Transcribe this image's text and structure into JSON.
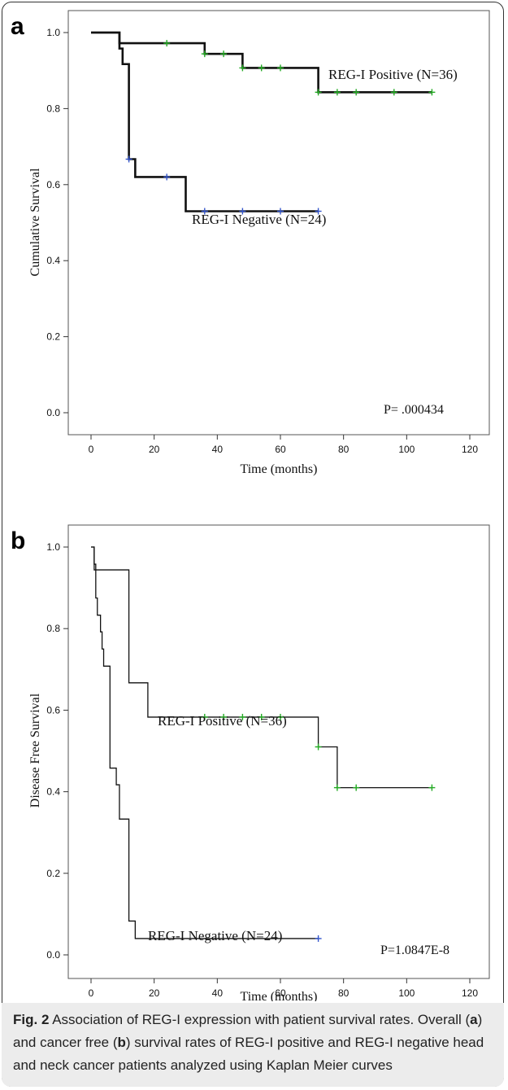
{
  "panels": [
    {
      "letter": "a",
      "chart_data": {
        "type": "line",
        "ylabel": "Cumulative Survival",
        "xlabel": "Time (months)",
        "xlim": [
          0,
          120
        ],
        "ylim": [
          0.0,
          1.0
        ],
        "xticks": [
          0,
          20,
          40,
          60,
          80,
          100,
          120
        ],
        "yticks": [
          "0.0",
          "0.2",
          "0.4",
          "0.6",
          "0.8",
          "1.0"
        ],
        "pvalue_text": "P= .000434",
        "line_weight": "bold",
        "series": [
          {
            "name": "REG-I Positive (N=36)",
            "steps": [
              [
                0,
                1.0
              ],
              [
                9,
                0.972
              ],
              [
                36,
                0.944
              ],
              [
                48,
                0.907
              ],
              [
                72,
                0.843
              ],
              [
                108,
                0.843
              ]
            ],
            "censored": [
              [
                24,
                0.972
              ],
              [
                36,
                0.944
              ],
              [
                42,
                0.944
              ],
              [
                48,
                0.907
              ],
              [
                54,
                0.907
              ],
              [
                60,
                0.907
              ],
              [
                72,
                0.843
              ],
              [
                78,
                0.843
              ],
              [
                84,
                0.843
              ],
              [
                96,
                0.843
              ],
              [
                108,
                0.843
              ]
            ],
            "color": "#22aa22"
          },
          {
            "name": "REG-I Negative (N=24)",
            "steps": [
              [
                0,
                1.0
              ],
              [
                9,
                0.958
              ],
              [
                10,
                0.917
              ],
              [
                12,
                0.667
              ],
              [
                14,
                0.62
              ],
              [
                30,
                0.53
              ],
              [
                72,
                0.53
              ]
            ],
            "censored": [
              [
                12,
                0.667
              ],
              [
                24,
                0.62
              ],
              [
                36,
                0.53
              ],
              [
                48,
                0.53
              ],
              [
                60,
                0.53
              ],
              [
                72,
                0.53
              ]
            ],
            "color": "#3355cc"
          }
        ]
      }
    },
    {
      "letter": "b",
      "chart_data": {
        "type": "line",
        "ylabel": "Disease Free Survival",
        "xlabel": "Time (months)",
        "xlim": [
          0,
          120
        ],
        "ylim": [
          0.0,
          1.0
        ],
        "xticks": [
          0,
          20,
          40,
          60,
          80,
          100,
          120
        ],
        "yticks": [
          "0.0",
          "0.2",
          "0.4",
          "0.6",
          "0.8",
          "1.0"
        ],
        "pvalue_text": "P=1.0847E-8",
        "line_weight": "thin",
        "series": [
          {
            "name": "REG-I Positive (N=36)",
            "steps": [
              [
                0,
                1.0
              ],
              [
                1,
                0.944
              ],
              [
                12,
                0.667
              ],
              [
                18,
                0.583
              ],
              [
                72,
                0.51
              ],
              [
                78,
                0.41
              ],
              [
                108,
                0.41
              ]
            ],
            "censored": [
              [
                36,
                0.583
              ],
              [
                42,
                0.583
              ],
              [
                48,
                0.583
              ],
              [
                54,
                0.583
              ],
              [
                60,
                0.583
              ],
              [
                72,
                0.51
              ],
              [
                78,
                0.41
              ],
              [
                84,
                0.41
              ],
              [
                108,
                0.41
              ]
            ],
            "color": "#22aa22"
          },
          {
            "name": "REG-I Negative (N=24)",
            "steps": [
              [
                0,
                1.0
              ],
              [
                1,
                0.958
              ],
              [
                1.5,
                0.875
              ],
              [
                2,
                0.833
              ],
              [
                3,
                0.792
              ],
              [
                3.5,
                0.75
              ],
              [
                4,
                0.708
              ],
              [
                6,
                0.458
              ],
              [
                8,
                0.417
              ],
              [
                9,
                0.333
              ],
              [
                12,
                0.083
              ],
              [
                14,
                0.04
              ],
              [
                72,
                0.04
              ]
            ],
            "censored": [
              [
                72,
                0.04
              ]
            ],
            "color": "#3355cc"
          }
        ]
      }
    }
  ],
  "caption": {
    "fig_label": "Fig. 2",
    "text_1": " Association of REG-I expression with patient survival rates. Overall (",
    "a": "a",
    "text_2": ") and cancer free (",
    "b": "b",
    "text_3": ") survival rates of REG-I positive and REG-I negative head and neck cancer patients analyzed using Kaplan Meier curves"
  }
}
